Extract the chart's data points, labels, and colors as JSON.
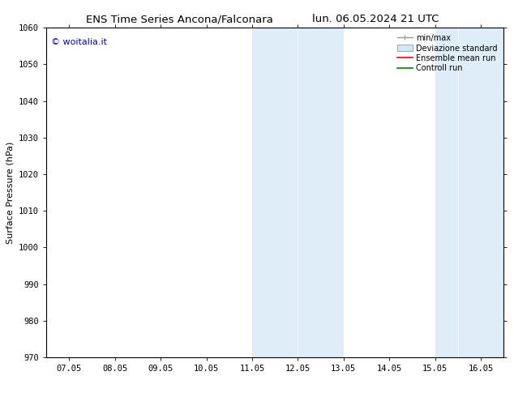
{
  "title_left": "ENS Time Series Ancona/Falconara",
  "title_right": "lun. 06.05.2024 21 UTC",
  "ylabel": "Surface Pressure (hPa)",
  "ylim": [
    970,
    1060
  ],
  "yticks": [
    970,
    980,
    990,
    1000,
    1010,
    1020,
    1030,
    1040,
    1050,
    1060
  ],
  "xtick_labels": [
    "07.05",
    "08.05",
    "09.05",
    "10.05",
    "11.05",
    "12.05",
    "13.05",
    "14.05",
    "15.05",
    "16.05"
  ],
  "xtick_positions": [
    0,
    1,
    2,
    3,
    4,
    5,
    6,
    7,
    8,
    9
  ],
  "xlim": [
    -0.5,
    9.5
  ],
  "shaded_bands": [
    {
      "x_start": 3.95,
      "x_end": 5.05,
      "color": "#deedf8"
    },
    {
      "x_start": 4.95,
      "x_end": 6.05,
      "color": "#deedf8"
    },
    {
      "x_start": 7.9,
      "x_end": 8.6,
      "color": "#deedf8"
    },
    {
      "x_start": 8.5,
      "x_end": 9.5,
      "color": "#deedf8"
    }
  ],
  "watermark_text": "© woitalia.it",
  "watermark_color": "#0000cc",
  "legend_entries": [
    {
      "label": "min/max",
      "color": "#999999",
      "lw": 1.0,
      "type": "hline_caps"
    },
    {
      "label": "Deviazione standard",
      "color": "#d0e8f5",
      "edgecolor": "#aaaaaa",
      "type": "rect"
    },
    {
      "label": "Ensemble mean run",
      "color": "red",
      "lw": 1.2,
      "type": "line"
    },
    {
      "label": "Controll run",
      "color": "green",
      "lw": 1.2,
      "type": "line"
    }
  ],
  "bg_color": "#ffffff",
  "title_fontsize": 9.5,
  "tick_fontsize": 7.5,
  "ylabel_fontsize": 8,
  "legend_fontsize": 7,
  "watermark_fontsize": 8
}
